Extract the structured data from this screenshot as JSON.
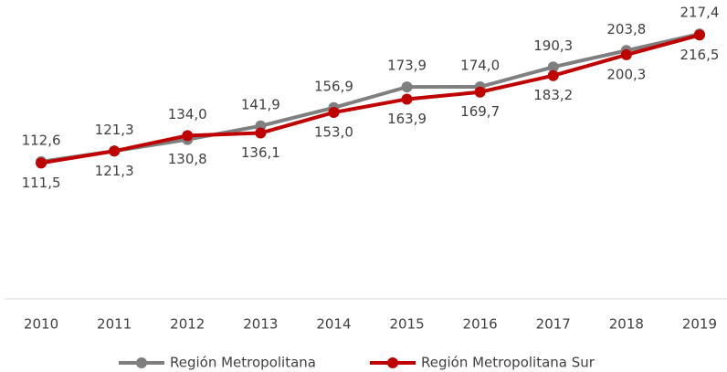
{
  "chart_data": {
    "type": "line",
    "categories": [
      "2010",
      "2011",
      "2012",
      "2013",
      "2014",
      "2015",
      "2016",
      "2017",
      "2018",
      "2019"
    ],
    "series": [
      {
        "name": "Región Metropolitana",
        "color": "#7f7f7f",
        "values": [
          112.6,
          121.3,
          130.8,
          141.9,
          156.9,
          173.9,
          174.0,
          190.3,
          203.8,
          217.4
        ],
        "value_labels": [
          "112,6",
          "121,3",
          "130,8",
          "141,9",
          "156,9",
          "173,9",
          "174,0",
          "190,3",
          "203,8",
          "217,4"
        ]
      },
      {
        "name": "Región Metropolitana Sur",
        "color": "#c00000",
        "values": [
          111.5,
          121.3,
          134.0,
          136.1,
          153.0,
          163.9,
          169.7,
          183.2,
          200.3,
          216.5
        ],
        "value_labels": [
          "111,5",
          "121,3",
          "134,0",
          "136,1",
          "153,0",
          "163,9",
          "169,7",
          "183,2",
          "200,3",
          "216,5"
        ]
      }
    ],
    "ylim": [
      0,
      240
    ],
    "legend": "bottom"
  }
}
